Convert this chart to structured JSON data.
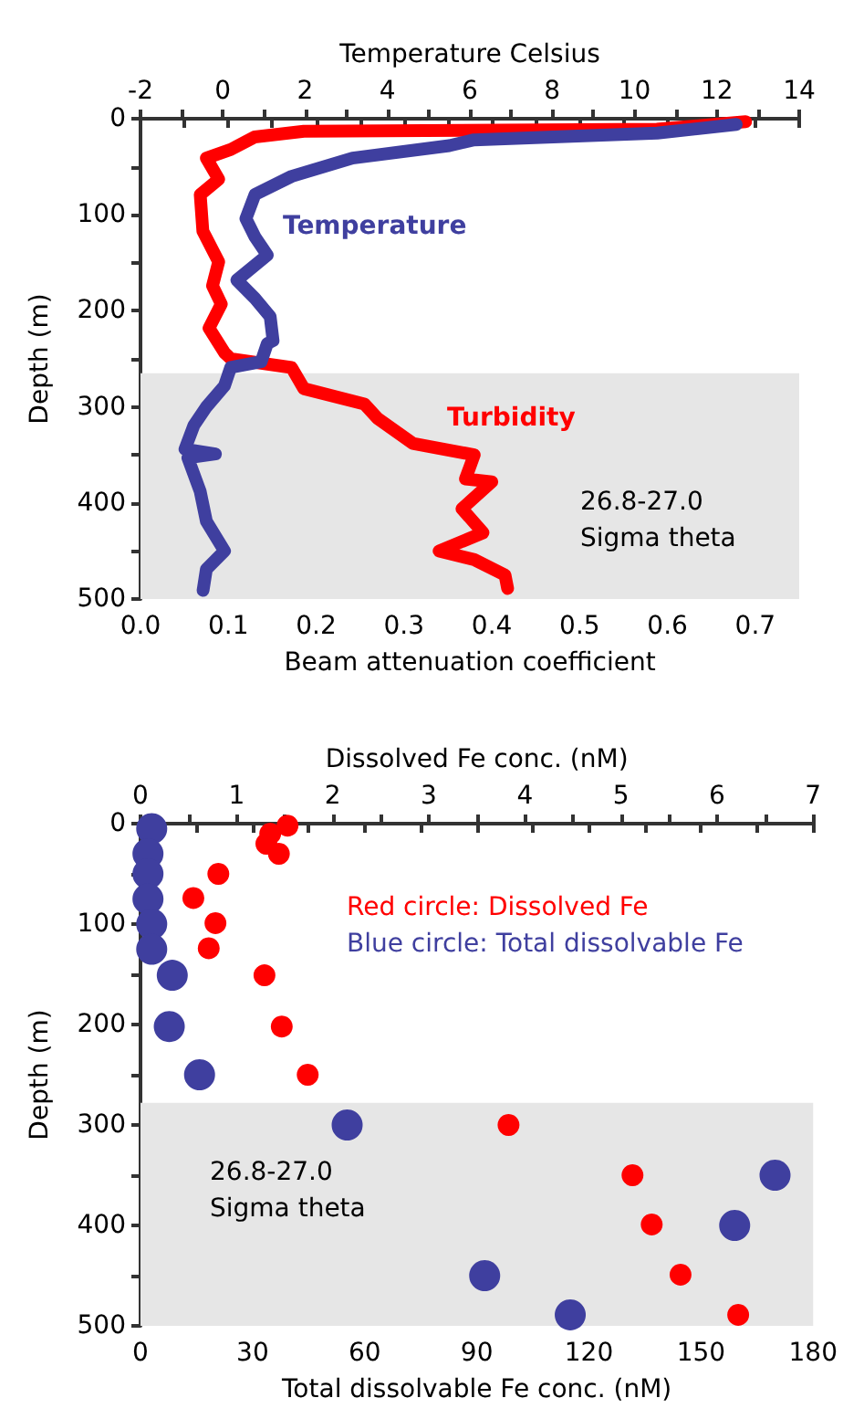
{
  "chart_data": [
    {
      "type": "line",
      "xlabel": "Beam attenuation coefficient",
      "x2label": "Temperature Celsius",
      "ylabel": "Depth (m)",
      "xlim": [
        0,
        0.75
      ],
      "xticks": [
        {
          "value": 0,
          "label": "0.0"
        },
        {
          "value": 0.05,
          "label": null
        },
        0.1,
        {
          "value": 0.15,
          "label": null
        },
        0.2,
        {
          "value": 0.25,
          "label": null
        },
        0.3,
        {
          "value": 0.35,
          "label": null
        },
        0.4,
        {
          "value": 0.45,
          "label": null
        },
        0.5,
        {
          "value": 0.55,
          "label": null
        },
        0.6,
        {
          "value": 0.65,
          "label": null
        },
        0.7,
        {
          "value": 0.75,
          "label": null
        }
      ],
      "x2lim": [
        -2,
        14
      ],
      "x2ticks": [
        -2,
        {
          "value": -1,
          "label": null
        },
        0,
        {
          "value": 1,
          "label": null
        },
        2,
        {
          "value": 3,
          "label": null
        },
        4,
        {
          "value": 5,
          "label": null
        },
        6,
        {
          "value": 7,
          "label": null
        },
        8,
        {
          "value": 9,
          "label": null
        },
        10,
        {
          "value": 11,
          "label": null
        },
        12,
        {
          "value": 13,
          "label": null
        },
        14
      ],
      "ylim": [
        500,
        0
      ],
      "yticks": [
        0,
        {
          "value": 50,
          "label": null
        },
        100,
        {
          "value": 150,
          "label": null
        },
        200,
        {
          "value": 250,
          "label": null
        },
        300,
        {
          "value": 350,
          "label": null
        },
        400,
        {
          "value": 450,
          "label": null
        },
        500
      ],
      "bands": [
        {
          "axis": "y",
          "from": 265,
          "to": 500,
          "color": "#e6e6e6"
        }
      ],
      "annotations": [
        "26.8-27.0",
        "Sigma theta"
      ],
      "grid": false,
      "legend": false,
      "marker": "none",
      "line_style": "solid",
      "series": [
        {
          "name": "Turbidity",
          "color": "#ff0000",
          "x": [
            0.689,
            0.588,
            0.186,
            0.13,
            0.103,
            0.075,
            0.089,
            0.068,
            0.071,
            0.089,
            0.082,
            0.092,
            0.078,
            0.096,
            0.103,
            0.172,
            0.186,
            0.255,
            0.27,
            0.31,
            0.38,
            0.37,
            0.4,
            0.366,
            0.39,
            0.34,
            0.38,
            0.415,
            0.418
          ],
          "values": [
            3,
            11,
            13,
            19,
            32,
            41,
            63,
            79,
            117,
            149,
            174,
            193,
            218,
            244,
            250,
            259,
            281,
            297,
            312,
            338,
            350,
            375,
            378,
            406,
            431,
            450,
            459,
            475,
            489
          ]
        },
        {
          "name": "Temperature",
          "color": "#3f3f9f",
          "axis": "x2",
          "x": [
            12.47,
            10.55,
            6.1,
            5.5,
            3.15,
            1.67,
            0.78,
            0.56,
            0.78,
            1.08,
            0.34,
            0.78,
            1.15,
            1.22,
            1.08,
            0.93,
            0.19,
            0.04,
            -0.4,
            -0.7,
            -0.92,
            -0.18,
            -0.85,
            -0.55,
            -0.4,
            0.04,
            -0.4,
            -0.48
          ],
          "values": [
            6,
            15,
            22,
            28,
            41,
            60,
            79,
            104,
            123,
            142,
            168,
            187,
            206,
            231,
            234,
            253,
            259,
            278,
            300,
            319,
            344,
            349,
            353,
            388,
            419,
            450,
            469,
            491
          ]
        }
      ]
    },
    {
      "type": "scatter",
      "xlabel": "Total dissolvable Fe conc. (nM)",
      "x2label": "Dissolved Fe conc. (nM)",
      "ylabel": "Depth (m)",
      "xlim": [
        0,
        180
      ],
      "xticks": [
        0,
        {
          "value": 15,
          "label": null
        },
        30,
        {
          "value": 45,
          "label": null
        },
        60,
        {
          "value": 75,
          "label": null
        },
        90,
        {
          "value": 105,
          "label": null
        },
        120,
        {
          "value": 135,
          "label": null
        },
        150,
        {
          "value": 165,
          "label": null
        },
        180
      ],
      "x2lim": [
        0,
        7
      ],
      "x2ticks": [
        0,
        {
          "value": 0.5,
          "label": null
        },
        1,
        {
          "value": 1.5,
          "label": null
        },
        2,
        {
          "value": 2.5,
          "label": null
        },
        3,
        {
          "value": 3.5,
          "label": null
        },
        4,
        {
          "value": 4.5,
          "label": null
        },
        5,
        {
          "value": 5.5,
          "label": null
        },
        6,
        {
          "value": 6.5,
          "label": null
        },
        7
      ],
      "ylim": [
        500,
        0
      ],
      "yticks": [
        0,
        {
          "value": 50,
          "label": null
        },
        100,
        {
          "value": 150,
          "label": null
        },
        200,
        {
          "value": 250,
          "label": null
        },
        300,
        {
          "value": 350,
          "label": null
        },
        400,
        {
          "value": 450,
          "label": null
        },
        500
      ],
      "bands": [
        {
          "axis": "y",
          "from": 278,
          "to": 500,
          "color": "#e6e6e6"
        }
      ],
      "annotations": [
        "26.8-27.0",
        "Sigma theta"
      ],
      "grid": false,
      "legend": false,
      "marker": "circle",
      "series": [
        {
          "name": "Red circle: Dissolved Fe",
          "color": "#ff0000",
          "axis": "x2",
          "x": [
            1.53,
            1.35,
            1.31,
            1.44,
            0.81,
            0.55,
            0.78,
            0.71,
            1.29,
            1.47,
            1.74,
            3.83,
            5.12,
            5.32,
            5.62,
            6.22
          ],
          "values": [
            2,
            10,
            20,
            30,
            50,
            74,
            99,
            124,
            151,
            202,
            250,
            300,
            350,
            399,
            449,
            489
          ]
        },
        {
          "name": "Blue circle: Total dissolvable Fe",
          "color": "#3f3f9f",
          "x": [
            3,
            2,
            2,
            2,
            3,
            3,
            8.5,
            7.7,
            15.8,
            55.3,
            169.8,
            159,
            92.1,
            115
          ],
          "values": [
            5,
            30,
            50,
            75,
            100,
            125,
            151,
            202,
            250,
            300,
            350,
            400,
            450,
            489
          ]
        }
      ]
    }
  ]
}
